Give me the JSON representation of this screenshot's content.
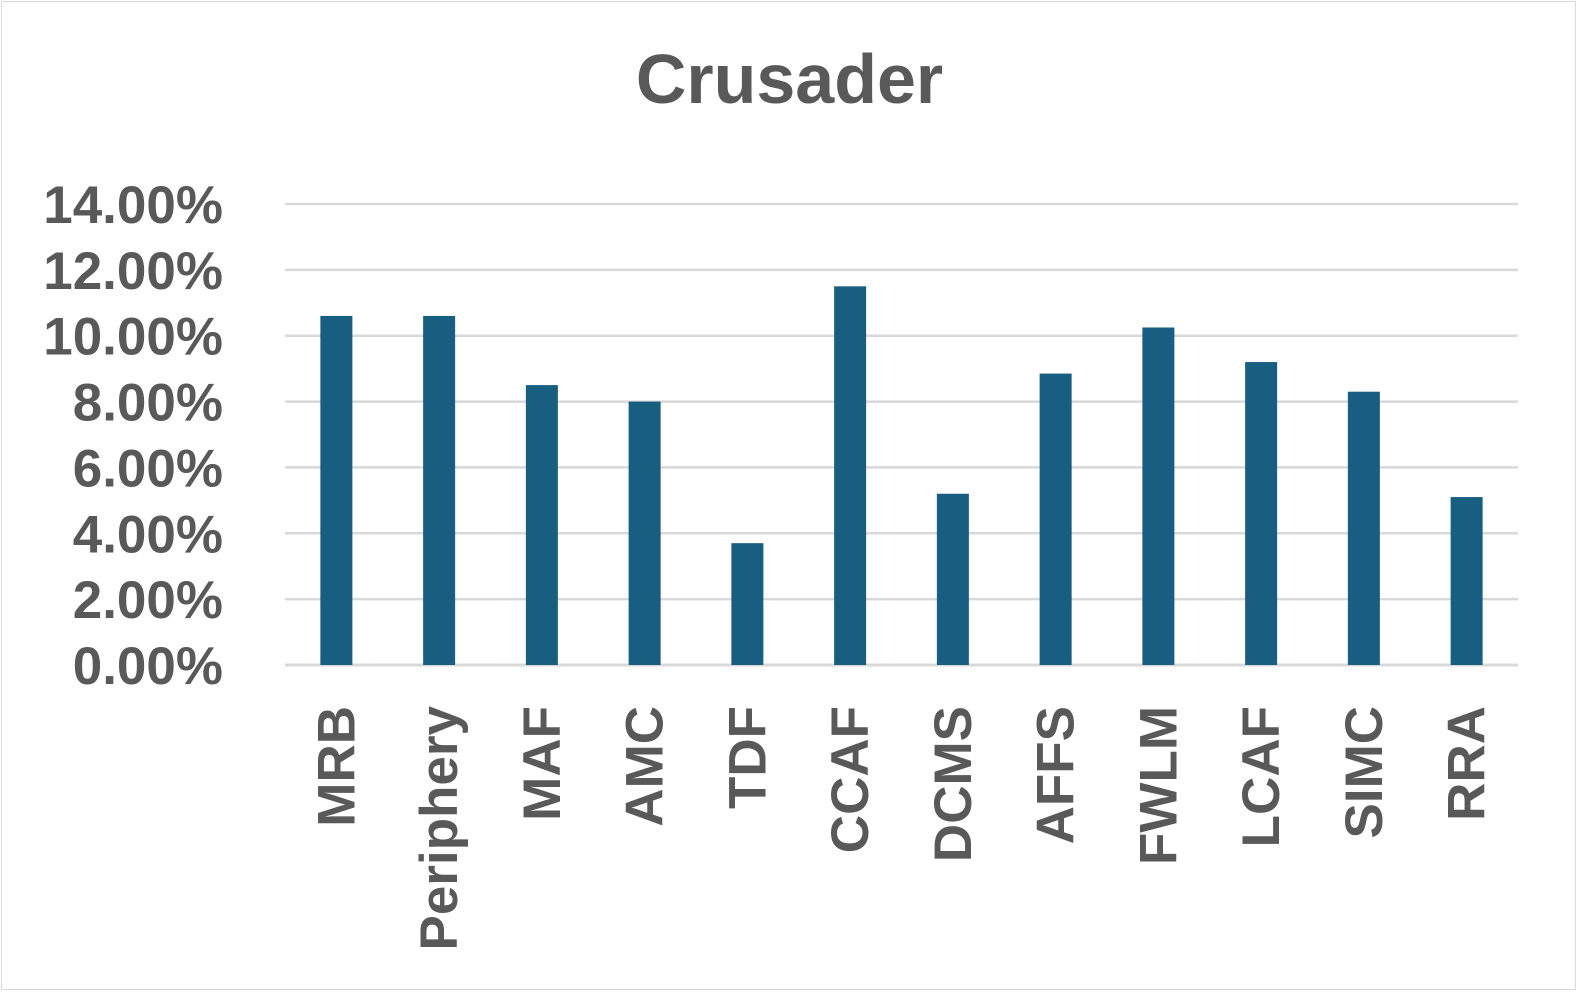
{
  "chart_data": {
    "type": "bar",
    "title": "Crusader",
    "xlabel": "",
    "ylabel": "",
    "categories": [
      "MRB",
      "Periphery",
      "MAF",
      "AMC",
      "TDF",
      "CCAF",
      "DCMS",
      "AFFS",
      "FWLM",
      "LCAF",
      "SIMC",
      "RRA"
    ],
    "values": [
      10.6,
      10.6,
      8.5,
      8.0,
      3.7,
      11.5,
      5.2,
      8.85,
      10.25,
      9.2,
      8.3,
      5.1
    ],
    "ylim": [
      0,
      14
    ],
    "ytick_values": [
      0,
      2,
      4,
      6,
      8,
      10,
      12,
      14
    ],
    "ytick_labels": [
      "0.00%",
      "2.00%",
      "4.00%",
      "6.00%",
      "8.00%",
      "10.00%",
      "12.00%",
      "14.00%"
    ],
    "grid": true,
    "legend": "none",
    "colors": {
      "bar": "#175e81",
      "grid": "#d9d9d9",
      "text": "#595959"
    }
  }
}
